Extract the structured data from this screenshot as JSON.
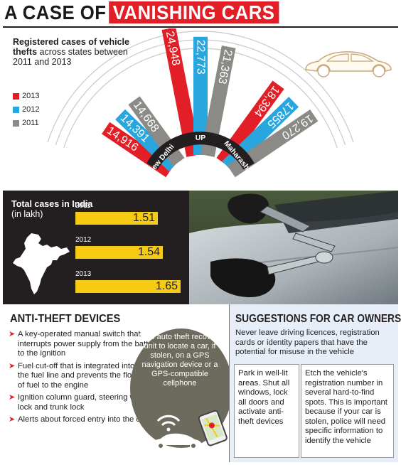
{
  "header": {
    "title_part1": "A CASE OF",
    "title_part2": "VANISHING CARS"
  },
  "intro": {
    "bold": "Registered cases of vehicle thefts",
    "rest": "across states between 2011 and 2013"
  },
  "legend": [
    {
      "label": "2013",
      "color": "#e21e26"
    },
    {
      "label": "2012",
      "color": "#2aa6df"
    },
    {
      "label": "2011",
      "color": "#8b8a86"
    }
  ],
  "icons": {
    "car": "car-outline-icon",
    "map": "india-map-icon",
    "wifi": "signal-icon",
    "phone": "phone-map-icon",
    "arrow": "red-arrow-icon"
  },
  "chart_data": [
    {
      "type": "bar",
      "title": "Registered cases of vehicle thefts across states between 2011 and 2013",
      "categories": [
        "New Delhi",
        "UP",
        "Maharashtra"
      ],
      "series": [
        {
          "name": "2013",
          "color": "#e21e26",
          "values": [
            14916,
            24948,
            18394
          ],
          "labels": [
            "14,916",
            "24,948",
            "18,394"
          ]
        },
        {
          "name": "2012",
          "color": "#2aa6df",
          "values": [
            14391,
            22773,
            17855
          ],
          "labels": [
            "14,391",
            "22,773",
            "17855"
          ]
        },
        {
          "name": "2011",
          "color": "#8b8a86",
          "values": [
            14668,
            21363,
            19270
          ],
          "labels": [
            "14,668",
            "21,363",
            "19,270"
          ]
        }
      ]
    },
    {
      "type": "bar",
      "title": "Total cases in India (in lakh)",
      "categories": [
        "2011",
        "2012",
        "2013"
      ],
      "values": [
        1.51,
        1.54,
        1.65
      ],
      "labels": [
        "1.51",
        "1.54",
        "1.65"
      ],
      "color": "#f6cb14"
    }
  ],
  "totals": {
    "title_bold": "Total cases in India",
    "title_sub": "(in lakh)"
  },
  "anti_theft": {
    "heading": "ANTI-THEFT DEVICES",
    "items": [
      "A key-operated manual switch that interrupts power supply from the battery to the ignition",
      "Fuel cut-off that is integrated into the fuel line and prevents the flow of fuel to the engine",
      "Ignition column guard, steering wheel lock and trunk lock",
      "Alerts about forced entry into the car"
    ],
    "gps_text": "GPS auto theft recovery unit to locate a car, if stolen, on a GPS navigation device or a GPS-compatible cellphone",
    "gps_color": "#6d6a5e"
  },
  "suggestions": {
    "heading": "SUGGESTIONS FOR CAR OWNERS",
    "lead": "Never leave driving licences, registration cards or identity papers that have the potential for misuse in the vehicle",
    "box1": "Park in well-lit areas. Shut all windows, lock all doors and activate anti-theft devices",
    "box2": "Etch the vehicle's registration number in several hard-to-find spots. This is important because if your car is stolen, police will need specific information to identify the vehicle"
  }
}
